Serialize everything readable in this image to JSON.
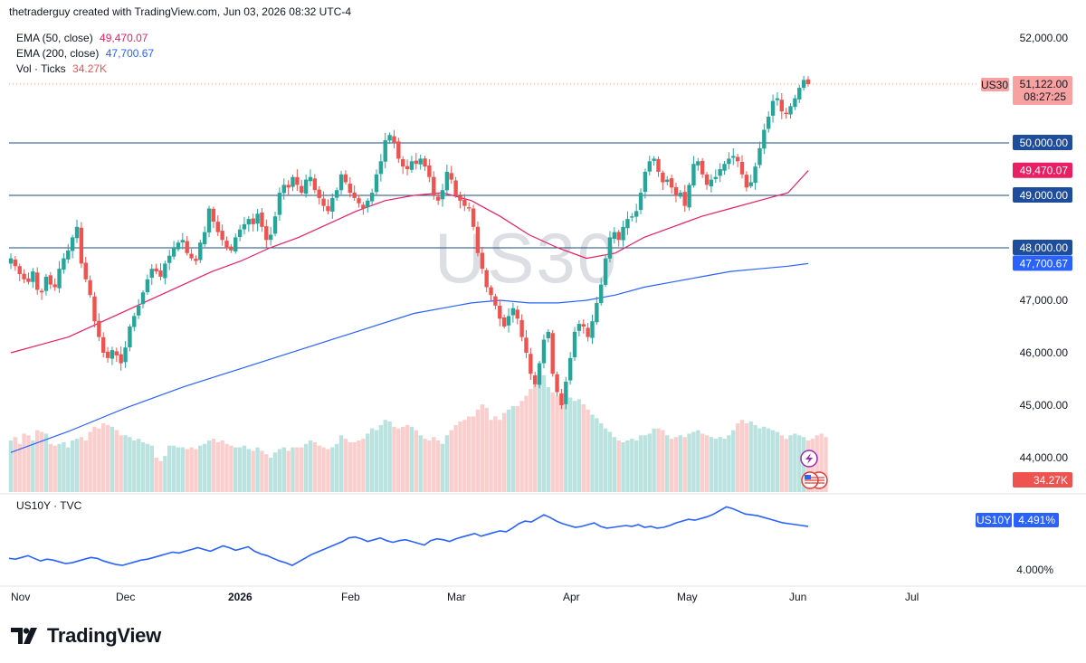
{
  "header": {
    "attribution": "thetraderguy created with TradingView.com, Jun 03, 2026 08:32 UTC-4"
  },
  "legend": {
    "ema50_label": "EMA (50, close)",
    "ema50_value": "49,470.07",
    "ema200_label": "EMA (200, close)",
    "ema200_value": "47,700.67",
    "vol_label": "Vol · Ticks",
    "vol_value": "34.27K"
  },
  "watermark": "US30",
  "price_tag": {
    "symbol": "US30",
    "price": "51,122.00",
    "countdown": "08:27:25"
  },
  "pane2": {
    "label": "US10Y · TVC",
    "symbol": "US10Y",
    "value": "4.491%",
    "tick": "4.000%"
  },
  "footer": {
    "brand": "TradingView"
  },
  "colors": {
    "up": "#26a69a",
    "down": "#ef5350",
    "ema50": "#e91e63",
    "ema200": "#2962ff",
    "level": "#1e4d7b",
    "yield": "#2962ff"
  },
  "chart_data": {
    "type": "candlestick",
    "price_axis": {
      "range": [
        43000,
        52700
      ],
      "ticks": [
        52000,
        51000,
        50000,
        49000,
        48000,
        47000,
        46000,
        45000,
        44000
      ],
      "tick_labels": [
        "52,000.00",
        "51,000.00",
        "50,000.00",
        "49,000.00",
        "48,000.00",
        "47,000.00",
        "46,000.00",
        "45,000.00",
        "44,000.00"
      ]
    },
    "levels": [
      {
        "value": 50000,
        "label": "50,000.00"
      },
      {
        "value": 49000,
        "label": "49,000.00"
      },
      {
        "value": 48000,
        "label": "48,000.00"
      }
    ],
    "ema_tags": [
      {
        "name": "EMA 50",
        "value": 49470.07,
        "label": "49,470.07"
      },
      {
        "name": "EMA 200",
        "value": 47700.67,
        "label": "47,700.67"
      }
    ],
    "x_axis": {
      "labels": [
        "Nov",
        "Dec",
        "2026",
        "Feb",
        "Mar",
        "Apr",
        "May",
        "Jun",
        "Jul"
      ],
      "bold": [
        "2026"
      ]
    },
    "candles_close": [
      47800,
      47650,
      47500,
      47400,
      47350,
      47550,
      47200,
      47150,
      47450,
      47300,
      47250,
      47600,
      47800,
      47950,
      48200,
      48400,
      47700,
      47400,
      47100,
      46600,
      46300,
      46000,
      45900,
      46050,
      45950,
      45800,
      46100,
      46500,
      46700,
      46900,
      47150,
      47400,
      47600,
      47550,
      47450,
      47700,
      47850,
      48000,
      48100,
      48150,
      47900,
      47800,
      47750,
      48100,
      48300,
      48750,
      48500,
      48300,
      48150,
      48000,
      47950,
      48200,
      48350,
      48450,
      48550,
      48450,
      48650,
      48400,
      48150,
      48250,
      48600,
      49050,
      49200,
      49150,
      49350,
      49200,
      49050,
      49300,
      49350,
      49100,
      48950,
      48800,
      48700,
      48950,
      49100,
      49400,
      49250,
      49050,
      48950,
      48850,
      48750,
      48900,
      49050,
      49400,
      49650,
      50050,
      50150,
      50000,
      49700,
      49550,
      49500,
      49650,
      49600,
      49700,
      49550,
      49350,
      49000,
      48900,
      49100,
      49450,
      49300,
      49000,
      48900,
      48800,
      48750,
      48400,
      47900,
      47600,
      47250,
      47100,
      46900,
      46650,
      46500,
      46700,
      46850,
      46650,
      46300,
      46000,
      45600,
      45400,
      45800,
      46250,
      46400,
      45600,
      45250,
      45000,
      45450,
      45900,
      46400,
      46550,
      46500,
      46300,
      46600,
      46950,
      47300,
      47800,
      48200,
      48300,
      48150,
      48400,
      48550,
      48600,
      48700,
      49050,
      49450,
      49650,
      49700,
      49450,
      49250,
      49300,
      49150,
      49000,
      49050,
      48800,
      49200,
      49600,
      49650,
      49400,
      49200,
      49300,
      49350,
      49500,
      49600,
      49700,
      49750,
      49650,
      49400,
      49150,
      49250,
      49550,
      49900,
      50250,
      50500,
      50800,
      50850,
      50600,
      50550,
      50700,
      50850,
      51050,
      51200,
      51122
    ]
  },
  "volume_data": [
    30,
    32,
    28,
    34,
    33,
    30,
    36,
    35,
    34,
    28,
    27,
    28,
    29,
    26,
    30,
    31,
    32,
    30,
    35,
    38,
    37,
    40,
    39,
    38,
    36,
    33,
    33,
    32,
    30,
    31,
    29,
    28,
    27,
    20,
    18,
    21,
    27,
    27,
    26,
    26,
    25,
    26,
    25,
    27,
    28,
    30,
    31,
    29,
    30,
    28,
    27,
    26,
    26,
    27,
    25,
    24,
    26,
    24,
    22,
    20,
    23,
    25,
    26,
    24,
    26,
    26,
    26,
    28,
    30,
    29,
    27,
    26,
    25,
    26,
    28,
    33,
    31,
    29,
    29,
    30,
    31,
    34,
    37,
    36,
    39,
    42,
    41,
    38,
    37,
    38,
    39,
    38,
    36,
    33,
    31,
    30,
    32,
    30,
    28,
    33,
    36,
    39,
    41,
    42,
    44,
    44,
    48,
    51,
    49,
    42,
    44,
    42,
    46,
    48,
    50,
    50,
    53,
    56,
    60,
    64,
    63,
    68,
    61,
    58,
    56,
    57,
    58,
    55,
    53,
    54,
    51,
    48,
    45,
    43,
    40,
    37,
    35,
    32,
    30,
    29,
    30,
    31,
    30,
    33,
    33,
    34,
    37,
    37,
    36,
    33,
    31,
    32,
    33,
    32,
    34,
    35,
    36,
    34,
    33,
    32,
    31,
    32,
    31,
    33,
    36,
    40,
    42,
    40,
    41,
    39,
    37,
    38,
    37,
    36,
    35,
    33,
    31,
    33,
    34,
    33,
    32,
    30,
    31,
    33,
    34,
    32
  ],
  "ema50_points": [
    [
      0,
      46000
    ],
    [
      10,
      46150
    ],
    [
      20,
      46300
    ],
    [
      30,
      46550
    ],
    [
      40,
      46800
    ],
    [
      50,
      47050
    ],
    [
      60,
      47300
    ],
    [
      70,
      47550
    ],
    [
      80,
      47750
    ],
    [
      90,
      48000
    ],
    [
      100,
      48200
    ],
    [
      110,
      48450
    ],
    [
      120,
      48700
    ],
    [
      130,
      48900
    ],
    [
      140,
      49000
    ],
    [
      150,
      49050
    ],
    [
      160,
      48900
    ],
    [
      170,
      48600
    ],
    [
      180,
      48250
    ],
    [
      190,
      48000
    ],
    [
      200,
      47800
    ],
    [
      210,
      47900
    ],
    [
      220,
      48200
    ],
    [
      230,
      48400
    ],
    [
      240,
      48600
    ],
    [
      250,
      48750
    ],
    [
      260,
      48900
    ],
    [
      270,
      49050
    ],
    [
      277,
      49470
    ]
  ],
  "ema200_points": [
    [
      0,
      44100
    ],
    [
      20,
      44500
    ],
    [
      40,
      44950
    ],
    [
      60,
      45350
    ],
    [
      80,
      45700
    ],
    [
      100,
      46050
    ],
    [
      120,
      46400
    ],
    [
      140,
      46750
    ],
    [
      160,
      46950
    ],
    [
      170,
      47000
    ],
    [
      180,
      46950
    ],
    [
      190,
      46950
    ],
    [
      200,
      47000
    ],
    [
      210,
      47100
    ],
    [
      220,
      47250
    ],
    [
      230,
      47350
    ],
    [
      240,
      47450
    ],
    [
      250,
      47550
    ],
    [
      260,
      47600
    ],
    [
      270,
      47650
    ],
    [
      277,
      47700
    ]
  ],
  "yield_data": [
    4.13,
    4.12,
    4.14,
    4.16,
    4.13,
    4.1,
    4.12,
    4.11,
    4.09,
    4.07,
    4.08,
    4.1,
    4.12,
    4.14,
    4.13,
    4.1,
    4.08,
    4.06,
    4.05,
    4.07,
    4.09,
    4.11,
    4.12,
    4.14,
    4.16,
    4.18,
    4.2,
    4.19,
    4.21,
    4.23,
    4.25,
    4.23,
    4.21,
    4.24,
    4.27,
    4.25,
    4.22,
    4.24,
    4.26,
    4.21,
    4.18,
    4.16,
    4.13,
    4.1,
    4.08,
    4.05,
    4.09,
    4.13,
    4.17,
    4.2,
    4.23,
    4.26,
    4.29,
    4.32,
    4.36,
    4.37,
    4.35,
    4.32,
    4.34,
    4.36,
    4.33,
    4.31,
    4.33,
    4.34,
    4.32,
    4.3,
    4.28,
    4.33,
    4.35,
    4.34,
    4.32,
    4.35,
    4.37,
    4.39,
    4.41,
    4.38,
    4.4,
    4.42,
    4.44,
    4.43,
    4.47,
    4.52,
    4.55,
    4.54,
    4.58,
    4.62,
    4.59,
    4.55,
    4.52,
    4.5,
    4.48,
    4.49,
    4.51,
    4.53,
    4.49,
    4.47,
    4.48,
    4.49,
    4.5,
    4.49,
    4.51,
    4.48,
    4.49,
    4.47,
    4.48,
    4.5,
    4.53,
    4.55,
    4.57,
    4.56,
    4.58,
    4.6,
    4.63,
    4.67,
    4.71,
    4.69,
    4.66,
    4.63,
    4.62,
    4.61,
    4.59,
    4.57,
    4.55,
    4.53,
    4.52,
    4.51,
    4.5,
    4.491
  ]
}
